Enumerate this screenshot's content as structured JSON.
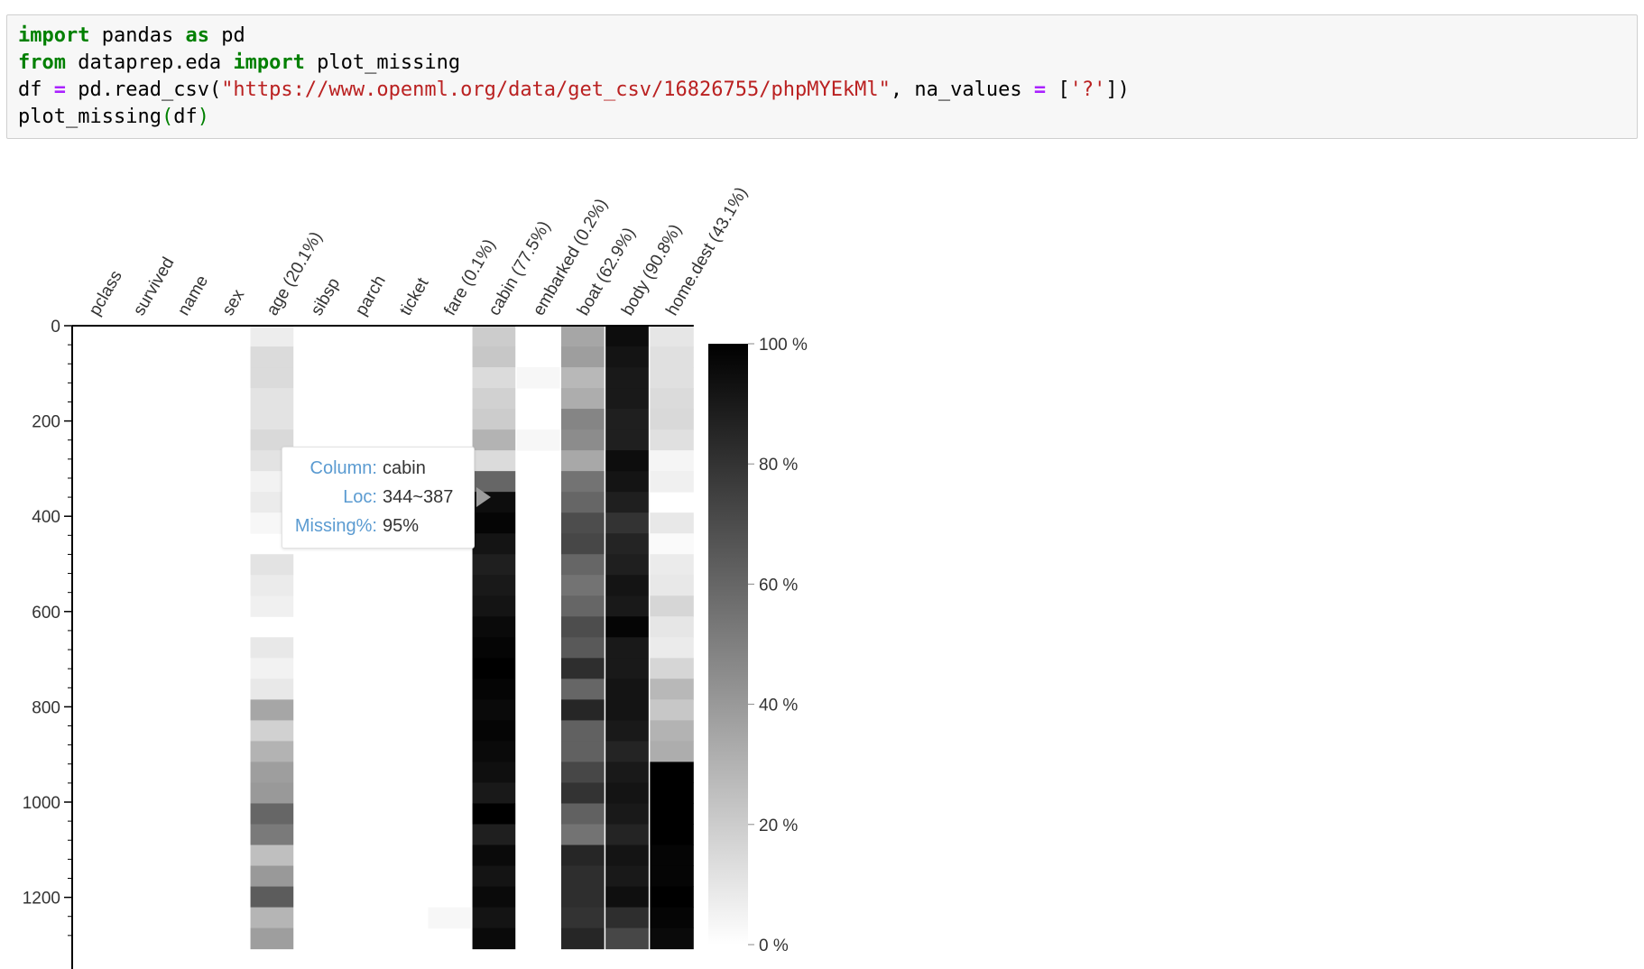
{
  "code_cell": {
    "lines": [
      [
        {
          "t": "import",
          "c": "kw"
        },
        {
          "t": " pandas ",
          "c": ""
        },
        {
          "t": "as",
          "c": "kw"
        },
        {
          "t": " pd",
          "c": ""
        }
      ],
      [
        {
          "t": "from",
          "c": "kw"
        },
        {
          "t": " dataprep.eda ",
          "c": ""
        },
        {
          "t": "import",
          "c": "kw"
        },
        {
          "t": " plot_missing",
          "c": ""
        }
      ],
      [
        {
          "t": "df ",
          "c": ""
        },
        {
          "t": "=",
          "c": "op"
        },
        {
          "t": " pd.read_csv(",
          "c": ""
        },
        {
          "t": "\"https://www.openml.org/data/get_csv/16826755/phpMYEkMl\"",
          "c": "str"
        },
        {
          "t": ", na_values ",
          "c": ""
        },
        {
          "t": "=",
          "c": "op"
        },
        {
          "t": " [",
          "c": ""
        },
        {
          "t": "'?'",
          "c": "str"
        },
        {
          "t": "])",
          "c": ""
        }
      ],
      [
        {
          "t": "plot_missing",
          "c": ""
        },
        {
          "t": "(",
          "c": "paren"
        },
        {
          "t": "df",
          "c": ""
        },
        {
          "t": ")",
          "c": "paren"
        }
      ]
    ]
  },
  "tooltip": {
    "column_label": "Column:",
    "column_value": "cabin",
    "loc_label": "Loc:",
    "loc_value": "344~387",
    "missing_label": "Missing%:",
    "missing_value": "95%"
  },
  "chart_data": {
    "type": "heatmap",
    "title": "",
    "colormap": "greys",
    "columns": [
      "pclass",
      "survived",
      "name",
      "sex",
      "age (20.1%)",
      "sibsp",
      "parch",
      "ticket",
      "fare (0.1%)",
      "cabin (77.5%)",
      "embarked (0.2%)",
      "boat (62.9%)",
      "body (90.8%)",
      "home.dest (43.1%)"
    ],
    "y_ticks": [
      0,
      200,
      400,
      600,
      800,
      1000,
      1200
    ],
    "ylim": [
      0,
      1309
    ],
    "bin_size": 43.6,
    "colorbar": {
      "range": [
        0,
        100
      ],
      "tick_values": [
        100,
        80,
        60,
        40,
        20,
        0
      ],
      "tick_labels": [
        "100 %",
        "80 %",
        "60 %",
        "40 %",
        "20 %",
        "0 %"
      ]
    },
    "missing_percent_per_bin": [
      [
        0,
        0,
        0,
        0,
        0,
        0,
        0,
        0,
        0,
        0,
        0,
        0,
        0,
        0,
        0,
        0,
        0,
        0,
        0,
        0,
        0,
        0,
        0,
        0,
        0,
        0,
        0,
        0,
        0,
        0
      ],
      [
        0,
        0,
        0,
        0,
        0,
        0,
        0,
        0,
        0,
        0,
        0,
        0,
        0,
        0,
        0,
        0,
        0,
        0,
        0,
        0,
        0,
        0,
        0,
        0,
        0,
        0,
        0,
        0,
        0,
        0
      ],
      [
        0,
        0,
        0,
        0,
        0,
        0,
        0,
        0,
        0,
        0,
        0,
        0,
        0,
        0,
        0,
        0,
        0,
        0,
        0,
        0,
        0,
        0,
        0,
        0,
        0,
        0,
        0,
        0,
        0,
        0
      ],
      [
        0,
        0,
        0,
        0,
        0,
        0,
        0,
        0,
        0,
        0,
        0,
        0,
        0,
        0,
        0,
        0,
        0,
        0,
        0,
        0,
        0,
        0,
        0,
        0,
        0,
        0,
        0,
        0,
        0,
        0
      ],
      [
        7,
        14,
        14,
        11,
        11,
        15,
        11,
        5,
        8,
        3,
        0,
        11,
        8,
        6,
        0,
        9,
        5,
        9,
        35,
        18,
        30,
        38,
        40,
        60,
        52,
        25,
        40,
        64,
        29,
        38
      ],
      [
        0,
        0,
        0,
        0,
        0,
        0,
        0,
        0,
        0,
        0,
        0,
        0,
        0,
        0,
        0,
        0,
        0,
        0,
        0,
        0,
        0,
        0,
        0,
        0,
        0,
        0,
        0,
        0,
        0,
        0
      ],
      [
        0,
        0,
        0,
        0,
        0,
        0,
        0,
        0,
        0,
        0,
        0,
        0,
        0,
        0,
        0,
        0,
        0,
        0,
        0,
        0,
        0,
        0,
        0,
        0,
        0,
        0,
        0,
        0,
        0,
        0
      ],
      [
        0,
        0,
        0,
        0,
        0,
        0,
        0,
        0,
        0,
        0,
        0,
        0,
        0,
        0,
        0,
        0,
        0,
        0,
        0,
        0,
        0,
        0,
        0,
        0,
        0,
        0,
        0,
        0,
        0,
        0
      ],
      [
        0,
        0,
        0,
        0,
        0,
        0,
        0,
        0,
        0,
        0,
        0,
        0,
        0,
        0,
        0,
        0,
        0,
        0,
        0,
        0,
        0,
        0,
        0,
        0,
        0,
        0,
        0,
        0,
        3,
        0
      ],
      [
        20,
        22,
        14,
        18,
        20,
        30,
        14,
        60,
        95,
        98,
        92,
        88,
        90,
        92,
        96,
        98,
        100,
        98,
        96,
        98,
        96,
        94,
        90,
        100,
        88,
        96,
        92,
        96,
        92,
        96
      ],
      [
        0,
        0,
        3,
        0,
        0,
        3,
        0,
        0,
        0,
        0,
        0,
        0,
        0,
        0,
        0,
        0,
        0,
        0,
        0,
        0,
        0,
        0,
        0,
        0,
        0,
        0,
        0,
        0,
        0,
        0
      ],
      [
        35,
        38,
        28,
        32,
        48,
        45,
        34,
        55,
        60,
        70,
        72,
        60,
        55,
        60,
        70,
        65,
        82,
        60,
        85,
        62,
        62,
        72,
        80,
        62,
        55,
        85,
        82,
        82,
        80,
        85
      ],
      [
        95,
        92,
        90,
        90,
        88,
        88,
        95,
        92,
        88,
        80,
        86,
        88,
        92,
        90,
        98,
        90,
        90,
        92,
        92,
        90,
        86,
        90,
        92,
        90,
        86,
        92,
        90,
        94,
        82,
        72
      ],
      [
        10,
        12,
        12,
        14,
        15,
        12,
        4,
        6,
        0,
        9,
        2,
        8,
        9,
        16,
        10,
        8,
        16,
        28,
        22,
        30,
        32,
        100,
        100,
        100,
        100,
        98,
        98,
        100,
        98,
        96
      ]
    ]
  }
}
